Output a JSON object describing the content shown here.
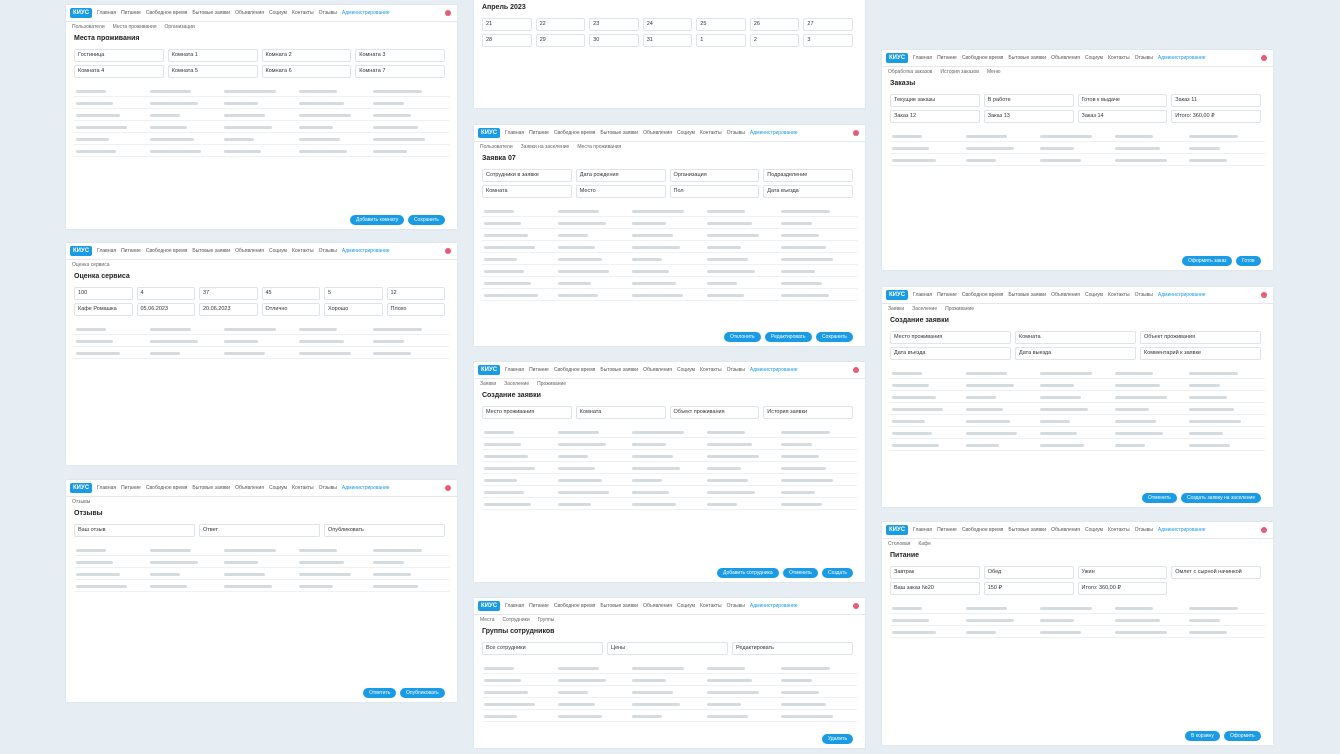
{
  "brand": "КИУС",
  "nav": [
    "Главная",
    "Питание",
    "Свободное время",
    "Бытовые заявки",
    "Объявления",
    "Социум",
    "Контакты",
    "Отзывы",
    "Администрирование"
  ],
  "panels": [
    {
      "tabs": [
        "Пользователи",
        "Места проживания",
        "Организации"
      ],
      "title": "Места проживания",
      "labels": [
        "Гостиница",
        "Комната 1",
        "Комната 2",
        "Комната 3",
        "Комната 4",
        "Комната 5",
        "Комната 6",
        "Комната 7"
      ],
      "buttons": [
        "Добавить комнату",
        "Сохранить"
      ]
    },
    {
      "tabs": [],
      "title": "Апрель 2023",
      "labels": [
        "21",
        "22",
        "23",
        "24",
        "25",
        "26",
        "27",
        "28",
        "29",
        "30",
        "31",
        "1",
        "2",
        "3"
      ],
      "buttons": []
    },
    {
      "tabs": [
        "Пользователи",
        "Заявки на заселение",
        "Места проживания"
      ],
      "title": "Заявка 07",
      "labels": [
        "Сотрудники в заявке",
        "Дата рождения",
        "Организация",
        "Подразделение",
        "Комната",
        "Место",
        "Пол",
        "Дата въезда"
      ],
      "buttons": [
        "Отклонить",
        "Редактировать",
        "Сохранить"
      ]
    },
    {
      "tabs": [
        "Заявки",
        "Заселение",
        "Проживание"
      ],
      "title": "Создание заявки",
      "labels": [
        "Место проживания",
        "Комната",
        "Объект проживания",
        "История заявки"
      ],
      "buttons": [
        "Добавить сотрудника",
        "Отменить",
        "Создать"
      ]
    },
    {
      "tabs": [
        "Места",
        "Сотрудники",
        "Группы"
      ],
      "title": "Группы сотрудников",
      "labels": [
        "Все сотрудники",
        "Цены",
        "Редактировать"
      ],
      "buttons": [
        "Удалить"
      ]
    },
    {
      "tabs": [
        "Оценка сервиса"
      ],
      "title": "Оценка сервиса",
      "labels": [
        "100",
        "4",
        "37",
        "45",
        "5",
        "12",
        "Кафе Ромашка",
        "05.06.2023",
        "20.06.2023",
        "Отлично",
        "Хорошо",
        "Плохо"
      ],
      "buttons": []
    },
    {
      "tabs": [
        "Отзывы"
      ],
      "title": "Отзывы",
      "labels": [
        "Ваш отзыв",
        "Ответ",
        "Опубликовать"
      ],
      "buttons": [
        "Ответить",
        "Опубликовать"
      ]
    },
    {
      "tabs": [
        "Обработка заказов",
        "История заказов",
        "Меню"
      ],
      "title": "Заказы",
      "labels": [
        "Текущие заказы",
        "В работе",
        "Готов к выдаче",
        "Заказ 11",
        "Заказ 12",
        "Заказ 13",
        "Заказ 14",
        "Итого: 360,00 ₽"
      ],
      "buttons": [
        "Оформить заказ",
        "Готов"
      ]
    },
    {
      "tabs": [
        "Заявки",
        "Заселение",
        "Проживание"
      ],
      "title": "Создание заявки",
      "labels": [
        "Место проживания",
        "Комната",
        "Объект проживания",
        "Дата въезда",
        "Дата выезда",
        "Комментарий к заявке"
      ],
      "buttons": [
        "Отменить",
        "Создать заявку на заселение"
      ]
    },
    {
      "tabs": [
        "Столовая",
        "Кафе"
      ],
      "title": "Питание",
      "labels": [
        "Завтрак",
        "Обед",
        "Ужин",
        "Омлет с сырной начинкой",
        "Ваш заказ №20",
        "150 ₽",
        "Итого: 360,00 ₽"
      ],
      "buttons": [
        "В корзину",
        "Оформить"
      ]
    }
  ]
}
